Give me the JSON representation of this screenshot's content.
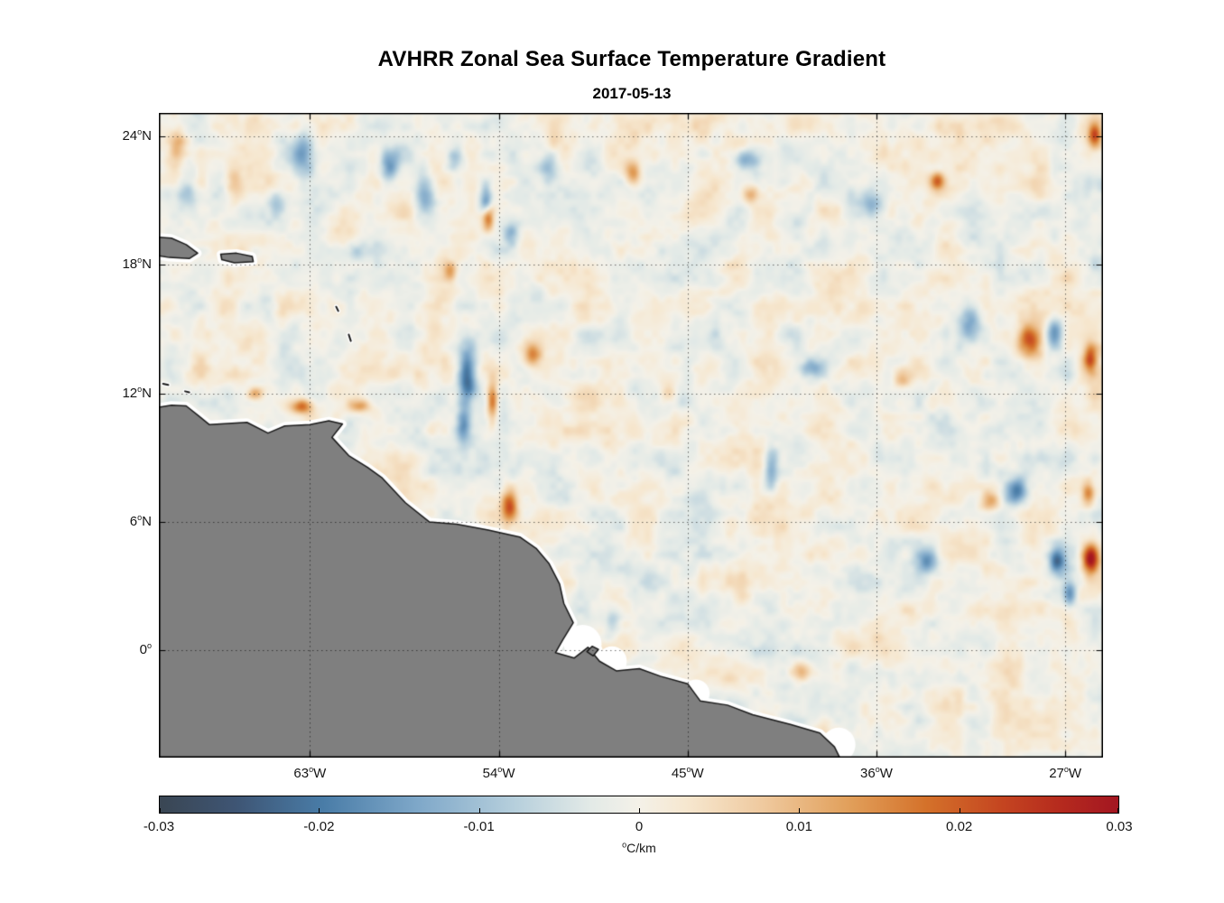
{
  "figure": {
    "title": "AVHRR Zonal Sea Surface Temperature Gradient",
    "subtitle": "2017-05-13",
    "background": "#ffffff"
  },
  "chart_data": {
    "type": "heatmap",
    "title": "AVHRR Zonal Sea Surface Temperature Gradient",
    "subtitle": "2017-05-13",
    "variable": "zonal sea surface temperature gradient",
    "degree_symbol": "o",
    "x_axis": {
      "kind": "longitude",
      "range_degW": [
        70.2,
        25.2
      ],
      "ticks": [
        {
          "num": "63",
          "suffix": "W",
          "degW": 63
        },
        {
          "num": "54",
          "suffix": "W",
          "degW": 54
        },
        {
          "num": "45",
          "suffix": "W",
          "degW": 45
        },
        {
          "num": "36",
          "suffix": "W",
          "degW": 36
        },
        {
          "num": "27",
          "suffix": "W",
          "degW": 27
        }
      ]
    },
    "y_axis": {
      "kind": "latitude",
      "range_lat": [
        -5.0,
        25.1
      ],
      "ticks": [
        {
          "num": "24",
          "suffix": "N",
          "lat": 24
        },
        {
          "num": "18",
          "suffix": "N",
          "lat": 18
        },
        {
          "num": "12",
          "suffix": "N",
          "lat": 12
        },
        {
          "num": "6",
          "suffix": "N",
          "lat": 6
        },
        {
          "num": "0",
          "suffix": "",
          "lat": 0
        }
      ]
    },
    "grid": {
      "style": "dotted",
      "color": "rgba(0,0,0,0.55)"
    },
    "colorbar": {
      "min": -0.03,
      "max": 0.03,
      "tick_labels": [
        "-0.03",
        "-0.02",
        "-0.01",
        "0",
        "0.01",
        "0.02",
        "0.03"
      ],
      "unit_text": "C/km"
    },
    "colormap": {
      "name": "diverging blue-white-red (balance-like)",
      "stops": [
        [
          0.0,
          "#3A4653"
        ],
        [
          0.08,
          "#3E5574"
        ],
        [
          0.17,
          "#497CA7"
        ],
        [
          0.27,
          "#7FA8C9"
        ],
        [
          0.37,
          "#B6CFDC"
        ],
        [
          0.45,
          "#E3EAE7"
        ],
        [
          0.5,
          "#F4F1E8"
        ],
        [
          0.55,
          "#F6E7CF"
        ],
        [
          0.63,
          "#EFC99E"
        ],
        [
          0.72,
          "#E19F5A"
        ],
        [
          0.8,
          "#D4712A"
        ],
        [
          0.88,
          "#C44420"
        ],
        [
          0.94,
          "#B52A1E"
        ],
        [
          1.0,
          "#A31621"
        ]
      ]
    },
    "noise": {
      "seed": 7,
      "amplitude": 0.0075,
      "octaves": [
        [
          0.7,
          0.55
        ],
        [
          1.55,
          0.3
        ],
        [
          3.1,
          0.18
        ]
      ]
    },
    "anomalies_format": [
      "lonW",
      "lat",
      "value_degC_per_km",
      "rx_deg",
      "ry_deg"
    ],
    "anomalies": [
      [
        63.3,
        23.2,
        -0.013,
        0.5,
        0.9
      ],
      [
        59.2,
        22.6,
        -0.014,
        0.45,
        0.8
      ],
      [
        57.6,
        21.4,
        -0.016,
        0.5,
        1.0
      ],
      [
        56.1,
        22.9,
        -0.011,
        0.4,
        0.6
      ],
      [
        54.6,
        21.0,
        -0.018,
        0.28,
        0.7
      ],
      [
        51.6,
        22.6,
        -0.012,
        0.45,
        0.7
      ],
      [
        42.2,
        22.9,
        -0.015,
        0.65,
        0.5
      ],
      [
        55.5,
        12.7,
        -0.024,
        0.45,
        1.4
      ],
      [
        55.7,
        10.5,
        -0.015,
        0.35,
        0.9
      ],
      [
        53.4,
        19.4,
        -0.012,
        0.35,
        0.5
      ],
      [
        39.1,
        13.2,
        -0.012,
        0.55,
        0.4
      ],
      [
        41.0,
        8.6,
        -0.013,
        0.35,
        1.2
      ],
      [
        29.3,
        7.5,
        -0.02,
        0.5,
        0.6
      ],
      [
        27.5,
        14.8,
        -0.02,
        0.4,
        0.65
      ],
      [
        31.6,
        15.3,
        -0.012,
        0.55,
        0.8
      ],
      [
        27.4,
        4.2,
        -0.022,
        0.38,
        0.6
      ],
      [
        26.8,
        2.6,
        -0.016,
        0.3,
        0.55
      ],
      [
        33.5,
        4.2,
        -0.015,
        0.5,
        0.55
      ],
      [
        48.6,
        1.4,
        -0.012,
        0.4,
        0.65
      ],
      [
        36.2,
        20.9,
        -0.01,
        0.5,
        0.55
      ],
      [
        64.6,
        20.8,
        -0.01,
        0.5,
        0.65
      ],
      [
        60.8,
        18.6,
        -0.009,
        0.6,
        0.5
      ],
      [
        68.8,
        21.5,
        -0.009,
        0.45,
        0.9
      ],
      [
        54.5,
        20.2,
        0.02,
        0.28,
        0.6
      ],
      [
        54.3,
        11.6,
        0.021,
        0.26,
        0.95
      ],
      [
        53.5,
        6.8,
        0.021,
        0.38,
        0.7
      ],
      [
        52.4,
        13.8,
        0.016,
        0.42,
        0.55
      ],
      [
        63.4,
        11.4,
        0.02,
        0.55,
        0.35
      ],
      [
        65.6,
        12.0,
        0.014,
        0.35,
        0.3
      ],
      [
        60.6,
        11.4,
        0.013,
        0.5,
        0.3
      ],
      [
        28.7,
        14.4,
        0.022,
        0.55,
        0.8
      ],
      [
        25.8,
        13.6,
        0.02,
        0.32,
        0.65
      ],
      [
        25.8,
        4.3,
        0.03,
        0.38,
        0.7
      ],
      [
        25.9,
        7.3,
        0.017,
        0.3,
        0.55
      ],
      [
        30.5,
        7.0,
        0.013,
        0.5,
        0.5
      ],
      [
        33.1,
        21.9,
        0.018,
        0.35,
        0.4
      ],
      [
        47.6,
        22.3,
        0.013,
        0.38,
        0.5
      ],
      [
        42.0,
        21.3,
        0.012,
        0.4,
        0.45
      ],
      [
        25.6,
        24.1,
        0.02,
        0.3,
        0.55
      ],
      [
        39.6,
        -1.0,
        0.014,
        0.5,
        0.45
      ],
      [
        69.3,
        23.6,
        0.01,
        0.4,
        0.9
      ],
      [
        34.8,
        12.7,
        0.01,
        0.45,
        0.45
      ],
      [
        45.9,
        12.0,
        0.01,
        0.4,
        0.5
      ],
      [
        56.3,
        17.7,
        0.012,
        0.3,
        0.4
      ],
      [
        66.6,
        21.9,
        0.01,
        0.4,
        0.9
      ]
    ],
    "land": {
      "fill": "#7F7F7F",
      "outline": "#1A1A1A",
      "no_data_halo": "#FFFFFF",
      "coast_polygon": [
        [
          70.9,
          11.25
        ],
        [
          69.6,
          11.45
        ],
        [
          68.9,
          11.42
        ],
        [
          68.3,
          10.95
        ],
        [
          67.8,
          10.55
        ],
        [
          66.9,
          10.6
        ],
        [
          66.0,
          10.65
        ],
        [
          65.0,
          10.15
        ],
        [
          64.2,
          10.48
        ],
        [
          63.0,
          10.55
        ],
        [
          62.1,
          10.72
        ],
        [
          61.45,
          10.58
        ],
        [
          61.95,
          9.95
        ],
        [
          61.15,
          9.1
        ],
        [
          60.25,
          8.55
        ],
        [
          59.55,
          8.05
        ],
        [
          58.45,
          6.9
        ],
        [
          57.3,
          6.0
        ],
        [
          56.0,
          5.9
        ],
        [
          54.5,
          5.62
        ],
        [
          53.0,
          5.3
        ],
        [
          52.2,
          4.75
        ],
        [
          51.6,
          4.05
        ],
        [
          51.1,
          3.1
        ],
        [
          50.9,
          2.2
        ],
        [
          50.45,
          1.3
        ],
        [
          50.95,
          0.5
        ],
        [
          51.3,
          -0.1
        ],
        [
          50.4,
          -0.35
        ],
        [
          49.75,
          0.15
        ],
        [
          49.2,
          -0.5
        ],
        [
          48.4,
          -0.95
        ],
        [
          47.3,
          -0.85
        ],
        [
          46.3,
          -1.2
        ],
        [
          45.0,
          -1.55
        ],
        [
          44.4,
          -2.35
        ],
        [
          43.1,
          -2.55
        ],
        [
          41.9,
          -3.0
        ],
        [
          40.1,
          -3.45
        ],
        [
          38.7,
          -3.85
        ],
        [
          38.0,
          -4.5
        ],
        [
          37.45,
          -5.6
        ],
        [
          70.9,
          -5.6
        ]
      ],
      "islands": [
        [
          [
            70.9,
            19.35
          ],
          [
            69.6,
            19.25
          ],
          [
            68.9,
            18.95
          ],
          [
            68.35,
            18.55
          ],
          [
            68.75,
            18.3
          ],
          [
            69.7,
            18.35
          ],
          [
            70.9,
            18.55
          ]
        ],
        [
          [
            67.25,
            18.5
          ],
          [
            66.5,
            18.55
          ],
          [
            65.75,
            18.4
          ],
          [
            65.7,
            18.15
          ],
          [
            66.6,
            18.1
          ],
          [
            67.2,
            18.25
          ]
        ],
        [
          [
            49.55,
            0.2
          ],
          [
            49.25,
            0.05
          ],
          [
            49.5,
            -0.25
          ],
          [
            49.8,
            -0.05
          ]
        ]
      ],
      "island_marks": [
        [
          [
            70.0,
            12.45
          ],
          [
            69.75,
            12.4
          ]
        ],
        [
          [
            68.95,
            12.1
          ],
          [
            68.75,
            12.05
          ]
        ],
        [
          [
            61.75,
            16.05
          ],
          [
            61.65,
            15.85
          ]
        ],
        [
          [
            61.15,
            14.75
          ],
          [
            61.05,
            14.45
          ]
        ]
      ],
      "white_patches": [
        [
          50.0,
          0.3,
          0.9
        ],
        [
          48.6,
          -0.5,
          0.7
        ],
        [
          44.6,
          -2.0,
          0.65
        ],
        [
          37.8,
          -4.4,
          0.8
        ]
      ]
    }
  }
}
